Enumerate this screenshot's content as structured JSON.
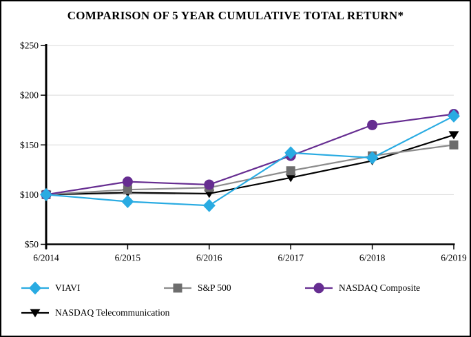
{
  "chart_data": {
    "type": "line",
    "title": "COMPARISON OF 5 YEAR CUMULATIVE TOTAL RETURN*",
    "categories": [
      "6/2014",
      "6/2015",
      "6/2016",
      "6/2017",
      "6/2018",
      "6/2019"
    ],
    "series": [
      {
        "name": "VIAVI",
        "marker": "diamond",
        "line_color": "#29abe2",
        "marker_color": "#29abe2",
        "values": [
          100,
          93,
          89,
          142,
          137,
          179
        ]
      },
      {
        "name": "S&P 500",
        "marker": "square",
        "line_color": "#8c8c8c",
        "marker_color": "#6d6d6d",
        "values": [
          100,
          105,
          107,
          124,
          139,
          150
        ]
      },
      {
        "name": "NASDAQ Composite",
        "marker": "circle",
        "line_color": "#662d91",
        "marker_color": "#662d91",
        "values": [
          100,
          113,
          110,
          139,
          170,
          181
        ]
      },
      {
        "name": "NASDAQ Telecommunication",
        "marker": "triangle-down",
        "line_color": "#000000",
        "marker_color": "#000000",
        "values": [
          100,
          102,
          101,
          117,
          134,
          160
        ]
      }
    ],
    "y_tick_labels": [
      "$250",
      "$200",
      "$150",
      "$100",
      "$50"
    ],
    "y_tick_values": [
      250,
      200,
      150,
      100,
      50
    ],
    "ylim": [
      50,
      250
    ],
    "grid": true,
    "legend_position": "bottom",
    "colors": {
      "gridline": "#d9d9d9",
      "axis": "#000000",
      "background": "#ffffff"
    }
  }
}
